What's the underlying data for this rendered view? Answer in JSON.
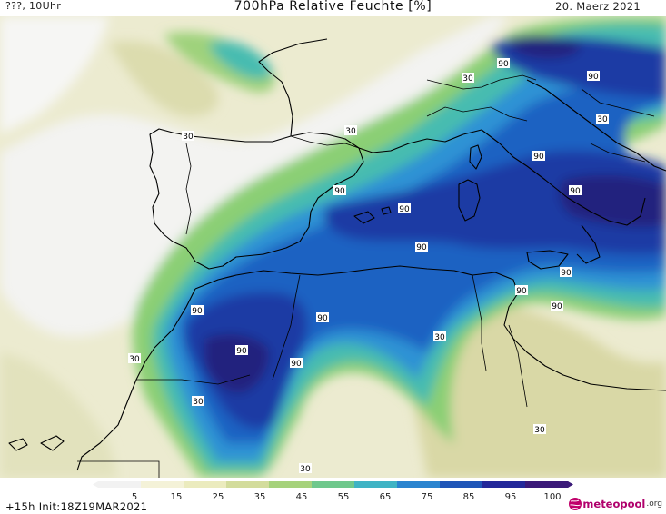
{
  "header": {
    "location_time": "???, 10Uhr",
    "title": "700hPa Relative Feuchte [%]",
    "date": "20. Maerz 2021"
  },
  "footer": {
    "run_info": "+15h Init:18Z19MAR2021",
    "brand_name": "meteopool",
    "brand_tld": ".org"
  },
  "legend": {
    "ticks": [
      "5",
      "15",
      "25",
      "35",
      "45",
      "55",
      "65",
      "75",
      "85",
      "95",
      "100"
    ],
    "colors": [
      "#f2f2f2",
      "#f4f2d8",
      "#ebebbe",
      "#d3dc9c",
      "#a6d27c",
      "#6fc88c",
      "#3fb3c4",
      "#2a84cf",
      "#1f56b8",
      "#23289a",
      "#3b1a79"
    ]
  },
  "map_labels": {
    "ninety": "90",
    "thirty": "30"
  },
  "colors": {
    "dry": "#f3f3f1",
    "pale": "#ecebd0",
    "tan": "#d9d8a6",
    "olive": "#b9c98a",
    "green": "#8bcf74",
    "teal": "#46bcb0",
    "lightblue": "#2d92d4",
    "blue": "#1f62c2",
    "darkblue": "#1c3aa4",
    "navy": "#20237e",
    "coast": "#000000"
  }
}
